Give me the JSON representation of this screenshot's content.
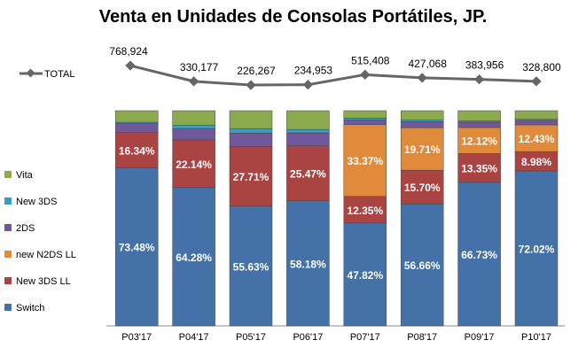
{
  "chart_data": {
    "type": "bar",
    "stacked": true,
    "percent_stacked": true,
    "title": "Venta en Unidades de Consolas Portátiles, JP.",
    "categories": [
      "P03'17",
      "P04'17",
      "P05'17",
      "P06'17",
      "P07'17",
      "P08'17",
      "P09'17",
      "P10'17"
    ],
    "series": [
      {
        "name": "Switch",
        "color": "#4472A8",
        "values": [
          73.48,
          64.28,
          55.63,
          58.18,
          47.82,
          56.66,
          66.73,
          72.02
        ],
        "labels": [
          "73.48%",
          "64.28%",
          "55.63%",
          "58.18%",
          "47.82%",
          "56.66%",
          "66.73%",
          "72.02%"
        ]
      },
      {
        "name": "New 3DS LL",
        "color": "#A94442",
        "values": [
          16.34,
          22.14,
          27.71,
          25.47,
          12.35,
          15.7,
          13.35,
          8.98
        ],
        "labels": [
          "16.34%",
          "22.14%",
          "27.71%",
          "25.47%",
          "12.35%",
          "15.70%",
          "13.35%",
          "8.98%"
        ]
      },
      {
        "name": "new N2DS LL",
        "color": "#E08A3C",
        "values": [
          0,
          0,
          0,
          0,
          33.37,
          19.71,
          12.12,
          12.43
        ],
        "labels": [
          "",
          "",
          "",
          "",
          "33.37%",
          "19.71%",
          "12.12%",
          "12.43%"
        ]
      },
      {
        "name": "2DS",
        "color": "#71589A",
        "values": [
          4.2,
          5.28,
          6.26,
          6.05,
          2.16,
          2.83,
          2.5,
          2.07
        ]
      },
      {
        "name": "New 3DS",
        "color": "#3A9EC0",
        "values": [
          0.6,
          1.6,
          2.1,
          1.6,
          0.8,
          0.7,
          0.5,
          0.5
        ]
      },
      {
        "name": "Vita",
        "color": "#8BA94D",
        "values": [
          5.38,
          6.7,
          8.3,
          8.7,
          3.5,
          4.4,
          4.8,
          4.0
        ]
      }
    ],
    "line": {
      "name": "TOTAL",
      "color": "#666666",
      "values": [
        768924,
        330177,
        226267,
        234953,
        515408,
        427068,
        383956,
        328800
      ],
      "labels": [
        "768,924",
        "330,177",
        "226,267",
        "234,953",
        "515,408",
        "427,068",
        "383,956",
        "328,800"
      ]
    },
    "ylim": [
      0,
      100
    ],
    "legend": "left",
    "grid": false
  }
}
